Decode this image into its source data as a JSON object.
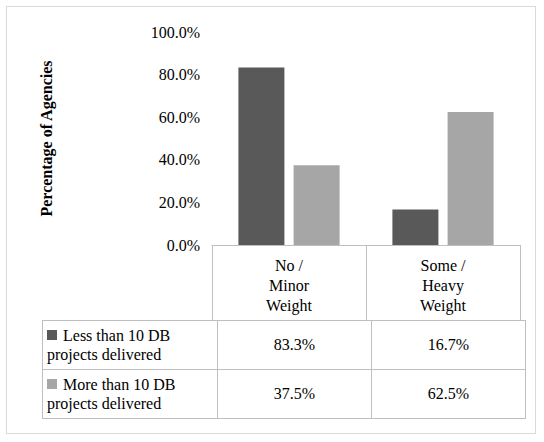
{
  "chart_data": {
    "type": "bar",
    "y_label": "Percentage of Agencies",
    "categories": [
      "No /\nMinor\nWeight",
      "Some /\nHeavy\nWeight"
    ],
    "series": [
      {
        "name": "Less than 10 DB projects delivered",
        "color": "#595959",
        "values": [
          83.3,
          16.7
        ],
        "value_labels": [
          "83.3%",
          "16.7%"
        ]
      },
      {
        "name": "More than 10 DB projects delivered",
        "color": "#a6a6a6",
        "values": [
          37.5,
          62.5
        ],
        "value_labels": [
          "37.5%",
          "62.5%"
        ]
      }
    ],
    "ylim": [
      0,
      100
    ],
    "yticks": [
      {
        "value": 0,
        "label": "0.0%"
      },
      {
        "value": 20,
        "label": "20.0%"
      },
      {
        "value": 40,
        "label": "40.0%"
      },
      {
        "value": 60,
        "label": "60.0%"
      },
      {
        "value": 80,
        "label": "80.0%"
      },
      {
        "value": 100,
        "label": "100.0%"
      }
    ],
    "grid": false
  }
}
